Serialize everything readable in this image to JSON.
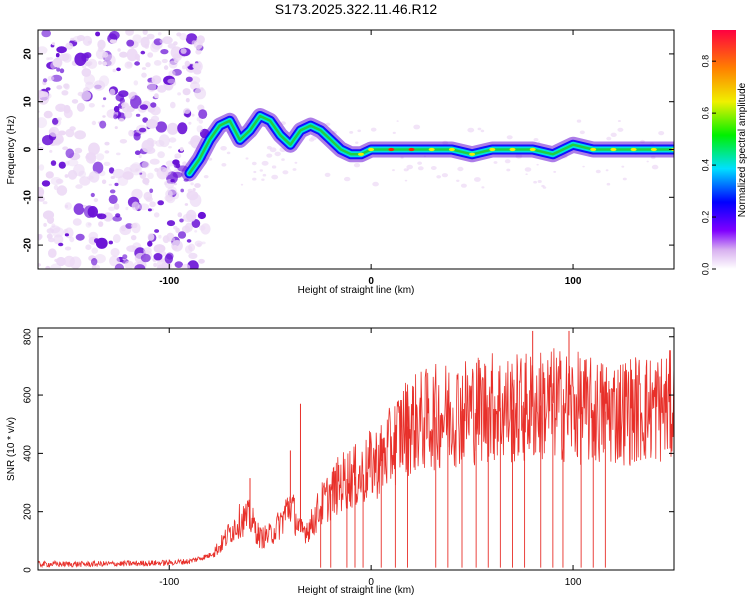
{
  "figure_title": "S173.2025.322.11.46.R12",
  "colors": {
    "snr_line": "#e8302a",
    "spectro_low": "#ecd9f5",
    "spectro_mid": "#6a12d6",
    "ridge_blue": "#1010ff",
    "ridge_cyan": "#00e0e0",
    "ridge_green": "#20d040",
    "ridge_yellow": "#f0f000",
    "ridge_red": "#ff2000"
  },
  "chart_data": [
    {
      "type": "heatmap",
      "title": "",
      "xlabel": "Height of straight line (km)",
      "ylabel": "Frequency (Hz)",
      "xlim": [
        -165,
        150
      ],
      "ylim": [
        -25,
        25
      ],
      "x_ticks": [
        -100,
        0,
        100
      ],
      "x_tick_labels": [
        "-100",
        "0",
        "100"
      ],
      "y_ticks": [
        -20,
        -10,
        0,
        10,
        20
      ],
      "y_tick_labels": [
        "-20",
        "-10",
        "0",
        "10",
        "20"
      ],
      "colorbar": {
        "label": "Normalized spectral amplitude",
        "range": [
          0,
          0.92
        ],
        "ticks": [
          0,
          0.2,
          0.4,
          0.6,
          0.8
        ],
        "tick_labels": [
          "0.0",
          "0.2",
          "0.4",
          "0.6",
          "0.8"
        ]
      },
      "noise_region_x": [
        -165,
        -90
      ],
      "ridge": {
        "x": [
          -90,
          -85,
          -80,
          -75,
          -70,
          -65,
          -60,
          -55,
          -50,
          -45,
          -40,
          -35,
          -30,
          -25,
          -20,
          -15,
          -10,
          -5,
          0,
          10,
          20,
          30,
          40,
          50,
          60,
          70,
          80,
          90,
          95,
          100,
          110,
          120,
          130,
          140,
          150
        ],
        "frequency": [
          -5,
          -2,
          2,
          5,
          6,
          2,
          4,
          7,
          6,
          3,
          1,
          4,
          5,
          4,
          2,
          0,
          -1,
          -1,
          0,
          0,
          0,
          0,
          0,
          -1,
          0,
          0,
          0,
          -1,
          0,
          1,
          0,
          0,
          0,
          0,
          0
        ],
        "amplitude": [
          0.3,
          0.35,
          0.4,
          0.45,
          0.4,
          0.4,
          0.45,
          0.45,
          0.4,
          0.45,
          0.4,
          0.5,
          0.5,
          0.5,
          0.5,
          0.55,
          0.6,
          0.7,
          0.75,
          0.9,
          0.85,
          0.8,
          0.8,
          0.75,
          0.7,
          0.75,
          0.7,
          0.65,
          0.6,
          0.6,
          0.7,
          0.75,
          0.75,
          0.75,
          0.7
        ]
      }
    },
    {
      "type": "line",
      "title": "",
      "xlabel": "Height of straight line (km)",
      "ylabel": "SNR (10 * v/v)",
      "xlim": [
        -165,
        150
      ],
      "ylim": [
        0,
        830
      ],
      "x_ticks": [
        -100,
        0,
        100
      ],
      "x_tick_labels": [
        "-100",
        "0",
        "100"
      ],
      "y_ticks": [
        0,
        200,
        400,
        600,
        800
      ],
      "y_tick_labels": [
        "0",
        "200",
        "400",
        "600",
        "800"
      ],
      "series": [
        {
          "name": "SNR",
          "x": [
            -165,
            -140,
            -120,
            -100,
            -90,
            -80,
            -75,
            -70,
            -65,
            -60,
            -55,
            -50,
            -45,
            -40,
            -35,
            -30,
            -25,
            -20,
            -15,
            -10,
            -5,
            0,
            5,
            10,
            15,
            20,
            25,
            30,
            35,
            40,
            50,
            60,
            70,
            80,
            90,
            100,
            110,
            120,
            130,
            140,
            150
          ],
          "values": [
            20,
            20,
            22,
            25,
            30,
            50,
            80,
            130,
            170,
            180,
            110,
            120,
            160,
            230,
            130,
            150,
            220,
            260,
            300,
            320,
            320,
            360,
            380,
            420,
            480,
            500,
            510,
            520,
            530,
            540,
            550,
            560,
            550,
            560,
            570,
            560,
            540,
            545,
            550,
            555,
            560
          ]
        }
      ],
      "peaks": [
        {
          "x": -60,
          "value": 315
        },
        {
          "x": -40,
          "value": 410
        },
        {
          "x": -35,
          "value": 570
        },
        {
          "x": 80,
          "value": 820
        },
        {
          "x": 98,
          "value": 820
        }
      ],
      "dropout_x": [
        -25,
        -20,
        -12,
        -8,
        -4,
        5,
        12,
        18,
        32,
        38,
        45,
        52,
        58,
        64,
        70,
        76,
        84,
        90,
        95,
        104,
        110,
        116
      ]
    }
  ]
}
